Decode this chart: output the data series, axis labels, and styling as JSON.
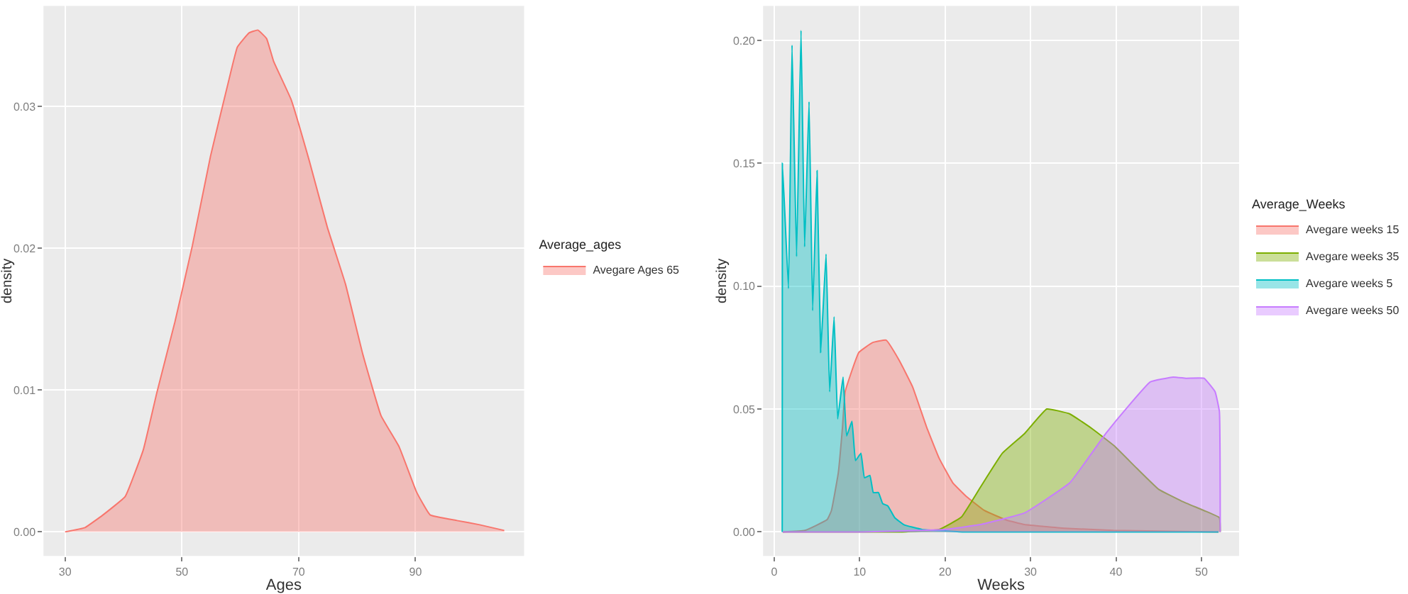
{
  "chart_data": [
    {
      "type": "area",
      "xlabel": "Ages",
      "ylabel": "density",
      "legend_title": "Average_ages",
      "legend": "right",
      "grid": true,
      "marker": "none",
      "xlim": [
        26.3,
        108.6
      ],
      "xticks": [
        30,
        50,
        70,
        90
      ],
      "ylim": [
        -0.0017,
        0.0371
      ],
      "yticks": [
        {
          "value": 0,
          "label": "0.00"
        },
        0.01,
        0.02,
        0.03
      ],
      "series": [
        {
          "name": "Avegare Ages 65",
          "color": "#f8766d",
          "x": [
            30,
            33.4,
            36.5,
            40.3,
            43.4,
            45.7,
            48.8,
            51.8,
            54.9,
            58,
            59.5,
            61.5,
            63,
            64.5,
            65.7,
            68.7,
            71.8,
            74.9,
            78,
            81,
            84.1,
            87.2,
            90.2,
            92.5,
            97.1,
            101,
            105.2
          ],
          "values": [
            0,
            0.0003,
            0.0012,
            0.0025,
            0.0058,
            0.0098,
            0.0148,
            0.0202,
            0.0265,
            0.0318,
            0.0342,
            0.0352,
            0.0354,
            0.0348,
            0.0332,
            0.0305,
            0.0262,
            0.0215,
            0.0175,
            0.0125,
            0.0082,
            0.006,
            0.0028,
            0.0012,
            0.0008,
            0.0005,
            0.0001
          ]
        }
      ]
    },
    {
      "type": "area",
      "xlabel": "Weeks",
      "ylabel": "density",
      "legend_title": "Average_Weeks",
      "legend": "right",
      "grid": true,
      "marker": "none",
      "xlim": [
        -1.3,
        54.4
      ],
      "xticks": [
        0,
        10,
        20,
        30,
        40,
        50
      ],
      "ylim": [
        -0.0098,
        0.214
      ],
      "yticks": [
        {
          "value": 0,
          "label": "0.00"
        },
        0.05,
        {
          "value": 0.1,
          "label": "0.10"
        },
        0.15,
        {
          "value": 0.2,
          "label": "0.20"
        }
      ],
      "series": [
        {
          "name": "Avegare weeks 15",
          "color": "#f8766d",
          "x": [
            1,
            3.6,
            6.2,
            6.7,
            7.5,
            8.0,
            8.3,
            9.9,
            11.5,
            13.1,
            14.6,
            16.2,
            17.8,
            19.3,
            20.9,
            22.5,
            24.6,
            27.2,
            29.3,
            34,
            39.7,
            45,
            52
          ],
          "values": [
            0,
            0.0006,
            0.005,
            0.0087,
            0.024,
            0.043,
            0.057,
            0.073,
            0.077,
            0.078,
            0.07,
            0.059,
            0.043,
            0.03,
            0.02,
            0.0144,
            0.0087,
            0.0048,
            0.003,
            0.0015,
            0.0006,
            0.0003,
            0
          ]
        },
        {
          "name": "Avegare weeks 35",
          "color": "#7cae00",
          "x": [
            1,
            15,
            19.3,
            21.9,
            24.1,
            26.7,
            29.3,
            31.9,
            34.6,
            37.2,
            39.8,
            42.4,
            45,
            47.7,
            50.3,
            52.1,
            52.2
          ],
          "values": [
            0,
            0,
            0.001,
            0.006,
            0.018,
            0.032,
            0.04,
            0.05,
            0.048,
            0.042,
            0.035,
            0.026,
            0.0173,
            0.0125,
            0.0087,
            0.0058,
            0
          ]
        },
        {
          "name": "Avegare weeks 5",
          "color": "#00bfc4",
          "x": [
            0.94,
            0.96,
            1.67,
            2.09,
            2.62,
            3.14,
            3.56,
            4.08,
            4.5,
            5.02,
            5.44,
            6.07,
            6.49,
            7.01,
            7.43,
            8.06,
            8.48,
            9.1,
            9.52,
            10.15,
            10.57,
            11.2,
            11.6,
            12.2,
            12.7,
            13.3,
            14.1,
            15.2,
            17.3,
            22,
            52
          ],
          "values": [
            0,
            0.15,
            0.099,
            0.198,
            0.112,
            0.204,
            0.116,
            0.175,
            0.09,
            0.147,
            0.073,
            0.113,
            0.057,
            0.0875,
            0.046,
            0.063,
            0.039,
            0.045,
            0.029,
            0.032,
            0.022,
            0.023,
            0.016,
            0.016,
            0.0115,
            0.0106,
            0.0058,
            0.0029,
            0.001,
            0,
            0
          ]
        },
        {
          "name": "Avegare weeks 50",
          "color": "#c77cff",
          "x": [
            1,
            10,
            20,
            24.1,
            29.3,
            34.6,
            38.8,
            41.4,
            44,
            46.7,
            48.2,
            50.3,
            51.6,
            52.1,
            52.2
          ],
          "values": [
            0,
            0,
            0.001,
            0.003,
            0.0077,
            0.02,
            0.04,
            0.051,
            0.061,
            0.063,
            0.0625,
            0.0625,
            0.057,
            0.049,
            0
          ]
        }
      ]
    }
  ]
}
